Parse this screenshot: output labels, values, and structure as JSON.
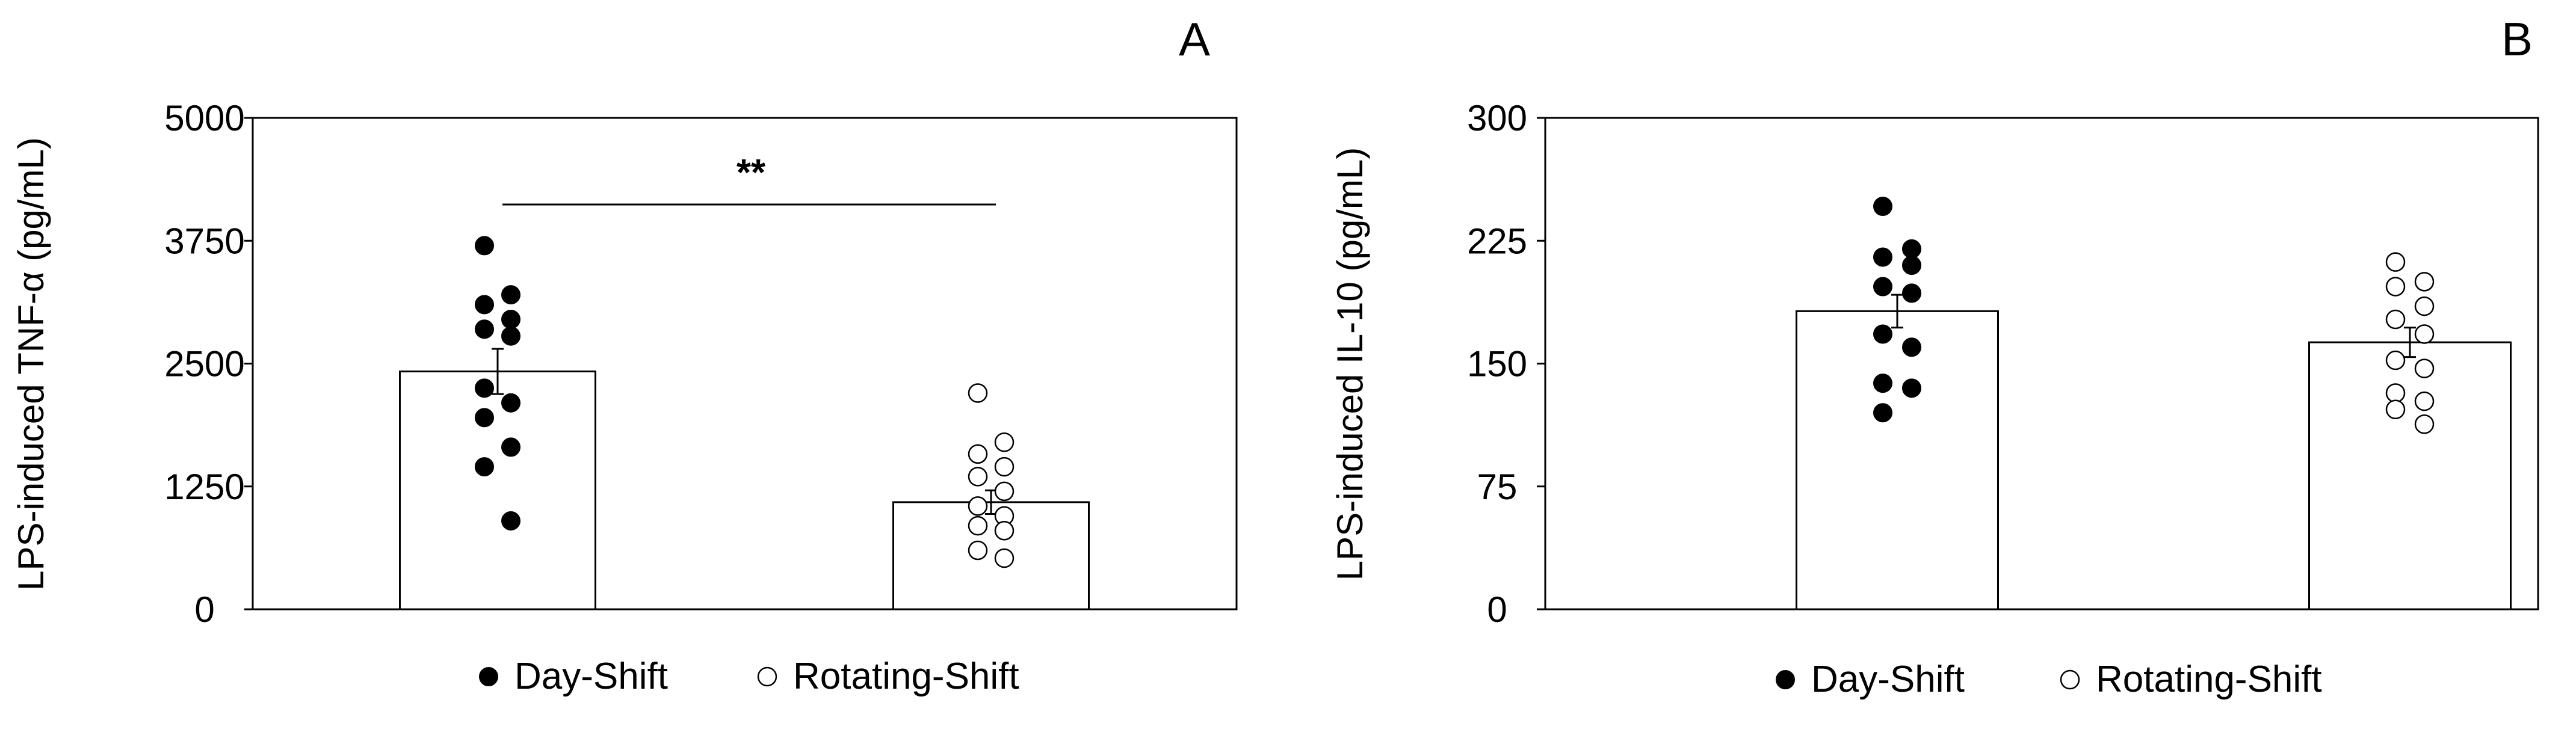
{
  "chart_data": [
    {
      "type": "bar",
      "panel_label": "A",
      "title": "",
      "xlabel": "",
      "ylabel": "LPS-induced TNF-α (pg/mL)",
      "ylim": [
        0,
        5000
      ],
      "yticks": [
        0,
        1250,
        2500,
        3750,
        5000
      ],
      "yticklabels": [
        "0",
        "1250",
        "2500",
        "3750",
        "5000"
      ],
      "grid": false,
      "legend": {
        "position": "bottom-center",
        "entries": [
          {
            "name": "Day-Shift",
            "marker": "filled-circle"
          },
          {
            "name": "Rotating-Shift",
            "marker": "open-circle"
          }
        ]
      },
      "significance": {
        "label": "**",
        "between": [
          "Day-Shift",
          "Rotating-Shift"
        ]
      },
      "categories": [
        "Day-Shift",
        "Rotating-Shift"
      ],
      "values": [
        2420,
        1090
      ],
      "error": [
        230,
        120
      ],
      "points": [
        [
          3700,
          3200,
          3100,
          2950,
          2850,
          2780,
          2250,
          2100,
          1950,
          1650,
          1450,
          900
        ],
        [
          2200,
          1700,
          1580,
          1450,
          1350,
          1200,
          1050,
          950,
          850,
          800,
          600,
          520
        ]
      ],
      "colors": {
        "bar_fill": "#ffffff",
        "bar_edge": "#000000",
        "day_marker": "#000000",
        "rotating_marker": "#ffffff"
      }
    },
    {
      "type": "bar",
      "panel_label": "B",
      "title": "",
      "xlabel": "",
      "ylabel": "LPS-induced IL-10 (pg/mL)",
      "ylim": [
        0,
        300
      ],
      "yticks": [
        0,
        75,
        150,
        225,
        300
      ],
      "yticklabels": [
        "0",
        "75",
        "150",
        "225",
        "300"
      ],
      "grid": false,
      "legend": {
        "position": "bottom-center",
        "entries": [
          {
            "name": "Day-Shift",
            "marker": "filled-circle"
          },
          {
            "name": "Rotating-Shift",
            "marker": "open-circle"
          }
        ]
      },
      "categories": [
        "Day-Shift",
        "Rotating-Shift"
      ],
      "values": [
        182,
        163
      ],
      "error": [
        10,
        9
      ],
      "points": [
        [
          246,
          220,
          215,
          210,
          197,
          193,
          168,
          160,
          138,
          135,
          120
        ],
        [
          212,
          200,
          197,
          185,
          177,
          168,
          152,
          147,
          132,
          127,
          122,
          113
        ]
      ],
      "colors": {
        "bar_fill": "#ffffff",
        "bar_edge": "#000000",
        "day_marker": "#000000",
        "rotating_marker": "#ffffff"
      }
    }
  ]
}
